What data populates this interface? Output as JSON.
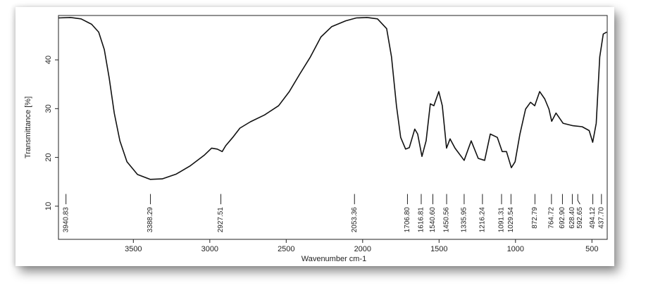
{
  "chart_data": {
    "type": "line",
    "x_label": "Wavenumber cm-1",
    "y_label": "Transmittance [%]",
    "color": "#111111",
    "xlim": [
      3990,
      400
    ],
    "ylim": [
      3.2,
      49.1
    ],
    "xticks": [
      3500,
      3000,
      2500,
      2000,
      1500,
      1000,
      500
    ],
    "yticks": [
      10,
      20,
      30,
      40
    ],
    "x": [
      3990,
      3912,
      3842,
      3773,
      3727,
      3690,
      3658,
      3625,
      3588,
      3542,
      3473,
      3390,
      3311,
      3219,
      3127,
      3034,
      2988,
      2951,
      2919,
      2896,
      2850,
      2803,
      2734,
      2642,
      2550,
      2480,
      2411,
      2342,
      2273,
      2203,
      2111,
      2042,
      1972,
      1903,
      1843,
      1811,
      1779,
      1751,
      1719,
      1695,
      1659,
      1640,
      1612,
      1585,
      1557,
      1534,
      1502,
      1479,
      1451,
      1428,
      1396,
      1336,
      1290,
      1244,
      1202,
      1165,
      1119,
      1087,
      1059,
      1027,
      1003,
      971,
      934,
      902,
      874,
      842,
      809,
      781,
      763,
      735,
      689,
      624,
      564,
      518,
      495,
      472,
      449,
      426,
      403
    ],
    "values": [
      48.6,
      48.7,
      48.4,
      47.3,
      45.7,
      42.1,
      36.3,
      29.1,
      23.4,
      19.1,
      16.5,
      15.5,
      15.6,
      16.6,
      18.3,
      20.5,
      21.9,
      21.7,
      21.2,
      22.4,
      24.1,
      26.0,
      27.3,
      28.7,
      30.6,
      33.5,
      37.1,
      40.6,
      44.7,
      46.8,
      48.0,
      48.6,
      48.7,
      48.4,
      46.4,
      40.6,
      30.6,
      24.1,
      21.7,
      22.0,
      25.8,
      24.8,
      20.2,
      23.4,
      31.0,
      30.6,
      33.5,
      30.6,
      21.9,
      23.8,
      21.9,
      19.4,
      23.4,
      19.8,
      19.4,
      24.8,
      24.1,
      21.2,
      21.2,
      17.9,
      19.1,
      24.8,
      29.9,
      31.3,
      30.6,
      33.5,
      32.0,
      29.9,
      27.4,
      29.1,
      27.0,
      26.5,
      26.3,
      25.5,
      23.1,
      27.0,
      40.6,
      45.3,
      45.7
    ],
    "peaks": [
      3940.83,
      3388.29,
      2927.51,
      2053.36,
      {
        "value": 1706.8,
        "label": "1706.80"
      },
      1616.81,
      {
        "value": 1540.6,
        "label": "1540.60"
      },
      1450.56,
      1335.95,
      1216.24,
      1091.31,
      1029.54,
      872.79,
      764.72,
      {
        "value": 692.9,
        "label": "692.90"
      },
      {
        "value": 628.4,
        "label": "628.40"
      },
      592.65,
      494.12,
      {
        "value": 437.7,
        "label": "437.70"
      }
    ]
  }
}
